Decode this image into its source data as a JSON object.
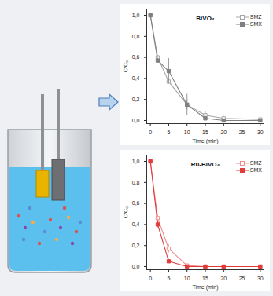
{
  "chart_data": [
    {
      "type": "line",
      "title": "BiVO₄",
      "xlabel": "Time (min)",
      "ylabel": "C/C₀",
      "x": [
        0,
        2,
        5,
        10,
        15,
        20,
        30
      ],
      "series": [
        {
          "name": "SMZ",
          "color": "#a6a6a6",
          "marker": "open-square",
          "line_style": "solid",
          "values": [
            1.0,
            0.6,
            0.37,
            0.15,
            0.05,
            0.02,
            0.01
          ],
          "errors": [
            0,
            0.02,
            0.02,
            0.05,
            0.04,
            0.02,
            0
          ]
        },
        {
          "name": "SMX",
          "color": "#7f7f7f",
          "marker": "square",
          "line_style": "solid",
          "values": [
            1.0,
            0.57,
            0.47,
            0.15,
            0.02,
            0.0,
            0.0
          ],
          "errors": [
            0,
            0.02,
            0.12,
            0.1,
            0.02,
            0,
            0
          ]
        }
      ],
      "xlim": [
        -1,
        31
      ],
      "ylim": [
        -0.03,
        1.06
      ],
      "xticks": [
        0,
        5,
        10,
        15,
        20,
        25,
        30
      ],
      "yticks": [
        {
          "value": 0,
          "label": "0,0"
        },
        {
          "value": 0.2,
          "label": "0,2"
        },
        {
          "value": 0.4,
          "label": "0,4"
        },
        {
          "value": 0.6,
          "label": "0,6"
        },
        {
          "value": 0.8,
          "label": "0,8"
        },
        {
          "value": 1,
          "label": "1,0"
        }
      ],
      "legend": "top-right"
    },
    {
      "type": "line",
      "title": "Ru-BiVO₄",
      "xlabel": "Time (min)",
      "ylabel": "C/C₀",
      "x": [
        0,
        2,
        5,
        10,
        15,
        20,
        30
      ],
      "series": [
        {
          "name": "SMZ",
          "color": "#f08c8c",
          "marker": "open-square",
          "line_style": "solid",
          "values": [
            1.0,
            0.46,
            0.17,
            0.01,
            0.0,
            0.0,
            0.0
          ],
          "errors": [
            0,
            0.04,
            0.04,
            0.01,
            0,
            0,
            0
          ]
        },
        {
          "name": "SMX",
          "color": "#e03c3c",
          "marker": "square",
          "line_style": "solid",
          "values": [
            1.0,
            0.4,
            0.05,
            0.0,
            0.0,
            0.0,
            0.0
          ],
          "errors": [
            0,
            0.03,
            0.02,
            0,
            0,
            0,
            0
          ]
        }
      ],
      "xlim": [
        -1,
        31
      ],
      "ylim": [
        -0.03,
        1.06
      ],
      "xticks": [
        0,
        5,
        10,
        15,
        20,
        25,
        30
      ],
      "yticks": [
        {
          "value": 0,
          "label": "0,0"
        },
        {
          "value": 0.2,
          "label": "0,2"
        },
        {
          "value": 0.4,
          "label": "0,4"
        },
        {
          "value": 0.6,
          "label": "0,6"
        },
        {
          "value": 0.8,
          "label": "0,8"
        },
        {
          "value": 1,
          "label": "1,0"
        }
      ],
      "legend": "top-right"
    }
  ]
}
